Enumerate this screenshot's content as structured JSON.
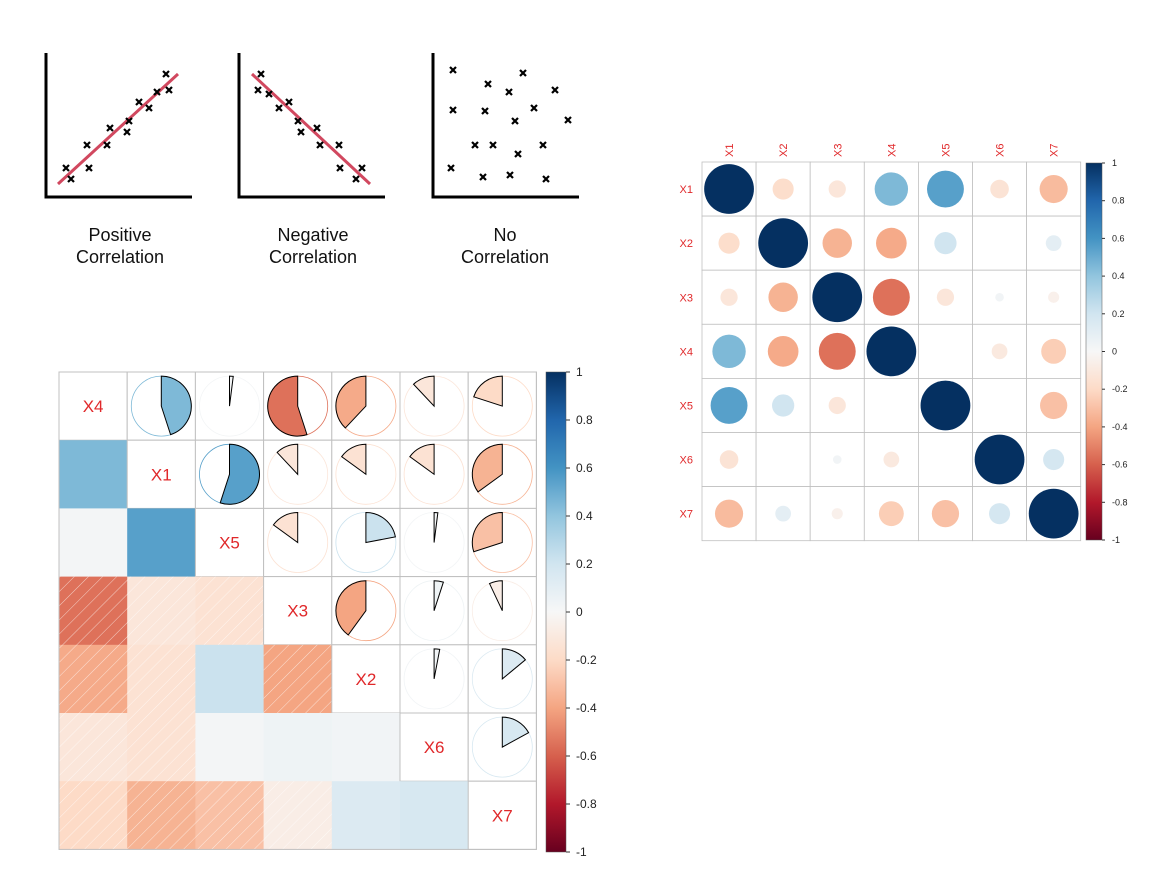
{
  "illustrations": [
    {
      "title_line1": "Positive",
      "title_line2": "Correlation",
      "trend": "positive"
    },
    {
      "title_line1": "Negative",
      "title_line2": "Correlation",
      "trend": "negative"
    },
    {
      "title_line1": "No",
      "title_line2": "Correlation",
      "trend": "none"
    }
  ],
  "colors": {
    "axis": "#000000",
    "trend_line": "#d1485f",
    "label_red": "#e0282a",
    "grid": "#c0c0c0"
  },
  "chart_data": [
    {
      "type": "heatmap",
      "variant": "mixed-pie-shade",
      "order": [
        "X4",
        "X1",
        "X5",
        "X3",
        "X2",
        "X6",
        "X7"
      ],
      "matrix": [
        [
          1.0,
          0.45,
          0.02,
          -0.55,
          -0.38,
          -0.12,
          -0.2
        ],
        [
          0.45,
          1.0,
          0.55,
          -0.12,
          -0.15,
          -0.15,
          -0.35
        ],
        [
          0.02,
          0.55,
          1.0,
          -0.15,
          0.22,
          0.02,
          -0.3
        ],
        [
          -0.55,
          -0.12,
          -0.15,
          1.0,
          -0.4,
          0.05,
          -0.07
        ],
        [
          -0.38,
          -0.15,
          0.22,
          -0.4,
          1.0,
          0.03,
          0.14
        ],
        [
          -0.12,
          -0.15,
          0.02,
          0.05,
          0.03,
          1.0,
          0.17
        ],
        [
          -0.2,
          -0.35,
          -0.3,
          -0.07,
          0.14,
          0.17,
          1.0
        ]
      ],
      "legend_ticks": [
        "1",
        "0.8",
        "0.6",
        "0.4",
        "0.2",
        "0",
        "-0.2",
        "-0.4",
        "-0.6",
        "-0.8",
        "-1"
      ],
      "scale_range": [
        -1,
        1
      ]
    },
    {
      "type": "heatmap",
      "variant": "circle",
      "order": [
        "X1",
        "X2",
        "X3",
        "X4",
        "X5",
        "X6",
        "X7"
      ],
      "matrix": [
        [
          1.0,
          -0.18,
          -0.12,
          0.45,
          0.55,
          -0.14,
          -0.32
        ],
        [
          -0.18,
          1.0,
          -0.35,
          -0.38,
          0.2,
          0.0,
          0.1
        ],
        [
          -0.12,
          -0.35,
          1.0,
          -0.55,
          -0.12,
          0.03,
          -0.05
        ],
        [
          0.45,
          -0.38,
          -0.55,
          1.0,
          0.0,
          -0.1,
          -0.25
        ],
        [
          0.55,
          0.2,
          -0.12,
          0.0,
          1.0,
          0.0,
          -0.3
        ],
        [
          -0.14,
          0.0,
          0.03,
          -0.1,
          0.0,
          1.0,
          0.18
        ],
        [
          -0.32,
          0.1,
          -0.05,
          -0.25,
          -0.3,
          0.18,
          1.0
        ]
      ],
      "legend_ticks": [
        "1",
        "0.8",
        "0.6",
        "0.4",
        "0.2",
        "0",
        "-0.2",
        "-0.4",
        "-0.6",
        "-0.8",
        "-1"
      ],
      "scale_range": [
        -1,
        1
      ]
    }
  ]
}
